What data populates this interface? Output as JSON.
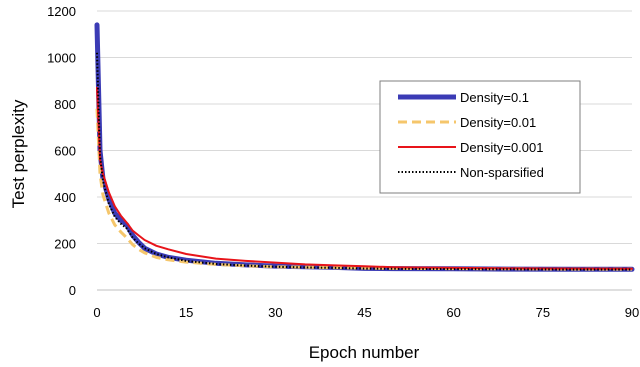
{
  "chart_data": {
    "type": "line",
    "xlabel": "Epoch number",
    "ylabel": "Test perplexity",
    "xlim": [
      0,
      90
    ],
    "ylim": [
      0,
      1200
    ],
    "xticks": [
      0,
      15,
      30,
      45,
      60,
      75,
      90
    ],
    "yticks": [
      0,
      200,
      400,
      600,
      800,
      1000,
      1200
    ],
    "grid": "horizontal",
    "legend_position": "right",
    "series": [
      {
        "name": "Density=0.1",
        "color": "#3B3BB5",
        "style": "solid-thick",
        "x": [
          0,
          0.5,
          1,
          2,
          3,
          4,
          5,
          6,
          7,
          8,
          10,
          12,
          15,
          20,
          25,
          30,
          35,
          40,
          45,
          50,
          60,
          70,
          80,
          90
        ],
        "y": [
          1140,
          600,
          480,
          390,
          330,
          300,
          280,
          235,
          205,
          180,
          155,
          140,
          128,
          115,
          108,
          103,
          100,
          97,
          93,
          92,
          91,
          90,
          89,
          89
        ]
      },
      {
        "name": "Density=0.01",
        "color": "#F5C66B",
        "style": "dashed",
        "x": [
          0,
          0.5,
          1,
          2,
          3,
          4,
          5,
          6,
          7,
          8,
          10,
          12,
          15,
          20,
          25,
          30,
          35,
          40,
          45,
          50,
          60,
          70,
          80,
          90
        ],
        "y": [
          780,
          500,
          410,
          330,
          280,
          250,
          225,
          195,
          175,
          160,
          140,
          130,
          120,
          110,
          104,
          100,
          98,
          96,
          94,
          93,
          92,
          91,
          90,
          90
        ]
      },
      {
        "name": "Density=0.001",
        "color": "#E8141A",
        "style": "solid",
        "x": [
          0,
          0.5,
          1,
          2,
          3,
          4,
          5,
          6,
          7,
          8,
          10,
          12,
          15,
          20,
          25,
          30,
          35,
          40,
          45,
          50,
          60,
          70,
          80,
          90
        ],
        "y": [
          870,
          560,
          500,
          420,
          360,
          320,
          290,
          255,
          235,
          215,
          190,
          175,
          155,
          135,
          125,
          118,
          110,
          106,
          102,
          98,
          95,
          93,
          92,
          91
        ]
      },
      {
        "name": "Non-sparsified",
        "color": "#000000",
        "style": "dotted",
        "x": [
          0,
          0.5,
          1,
          2,
          3,
          4,
          5,
          6,
          7,
          8,
          10,
          12,
          15,
          20,
          25,
          30,
          35,
          40,
          45,
          50,
          60,
          70,
          80,
          90
        ],
        "y": [
          1020,
          580,
          470,
          370,
          315,
          285,
          265,
          225,
          200,
          180,
          155,
          140,
          125,
          112,
          105,
          100,
          97,
          95,
          92,
          91,
          90,
          89,
          88,
          88
        ]
      }
    ]
  }
}
